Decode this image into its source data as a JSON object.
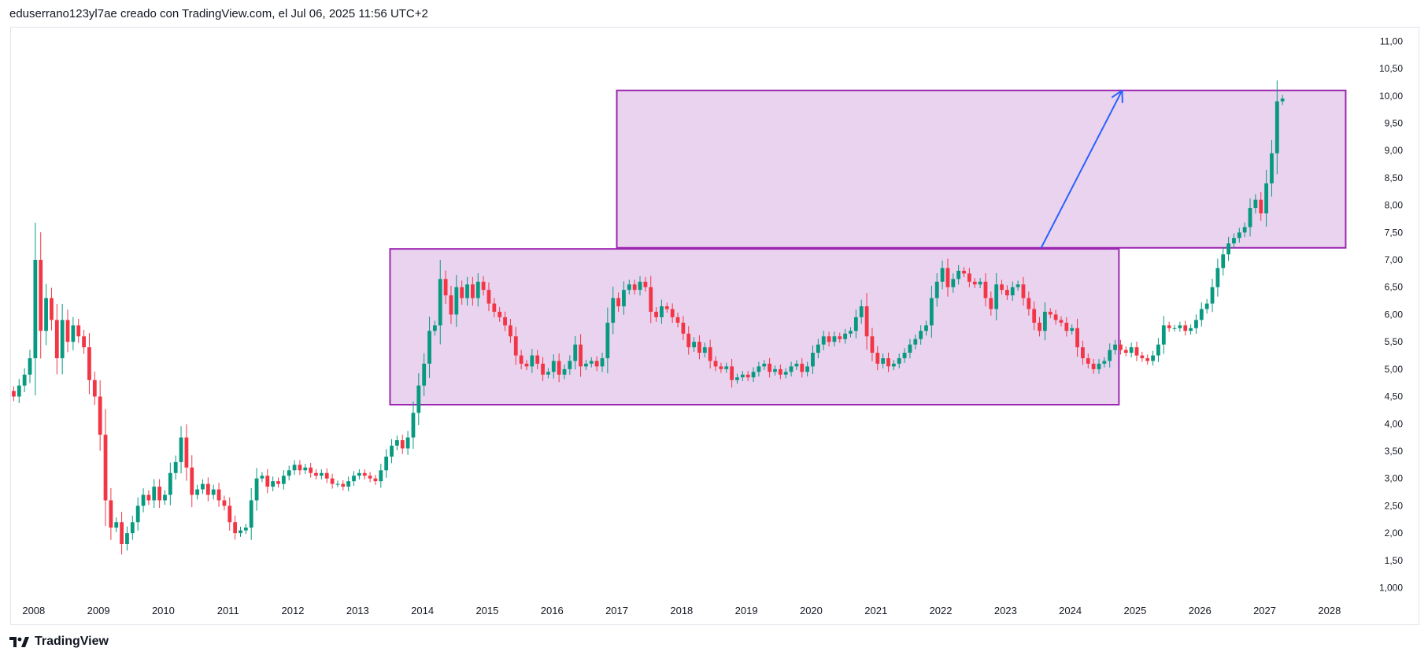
{
  "header": {
    "attribution": "eduserrano123yl7ae creado con TradingView.com, el Jul 06, 2025 11:56 UTC+2"
  },
  "footer": {
    "brand": "TradingView"
  },
  "colors": {
    "up": "#089981",
    "down": "#f23645",
    "box_fill": "#e1c4e9",
    "box_stroke": "#9c27b0",
    "arrow": "#2962ff",
    "axis_text": "#131722"
  },
  "chart_data": {
    "type": "candlestick",
    "timeframe": "monthly",
    "x_ticks": [
      "2008",
      "2009",
      "2010",
      "2011",
      "2012",
      "2013",
      "2014",
      "2015",
      "2016",
      "2017",
      "2018",
      "2019",
      "2020",
      "2021",
      "2022",
      "2023",
      "2024",
      "2025",
      "2026",
      "2027",
      "2028"
    ],
    "y_ticks": [
      "11,00",
      "10,50",
      "10,00",
      "9,50",
      "9,00",
      "8,50",
      "8,00",
      "7,50",
      "7,00",
      "6,50",
      "6,00",
      "5,50",
      "5,00",
      "4,50",
      "4,00",
      "3,50",
      "3,00",
      "2,50",
      "2,00",
      "1,50",
      "1,000"
    ],
    "ylim": [
      0.95,
      11.25
    ],
    "xlim": [
      2007.65,
      2028.5
    ],
    "start": 2007.65,
    "step": 0.0833333,
    "closes": [
      4.5,
      4.7,
      4.9,
      5.2,
      7.0,
      5.7,
      6.3,
      5.9,
      5.2,
      5.9,
      5.5,
      5.8,
      5.6,
      5.4,
      4.8,
      4.5,
      3.8,
      2.6,
      2.1,
      2.2,
      1.8,
      2.0,
      2.2,
      2.5,
      2.7,
      2.6,
      2.85,
      2.6,
      2.7,
      3.1,
      3.3,
      3.75,
      3.2,
      2.7,
      2.8,
      2.9,
      2.7,
      2.8,
      2.6,
      2.5,
      2.2,
      2.0,
      2.05,
      2.1,
      2.6,
      3.0,
      3.05,
      2.85,
      2.95,
      2.9,
      3.05,
      3.15,
      3.25,
      3.15,
      3.2,
      3.1,
      3.05,
      3.1,
      3.0,
      2.9,
      2.9,
      2.85,
      2.95,
      3.05,
      3.1,
      3.05,
      3.0,
      2.95,
      3.15,
      3.4,
      3.6,
      3.7,
      3.55,
      3.75,
      4.2,
      4.7,
      5.1,
      5.7,
      5.8,
      6.65,
      6.35,
      6.0,
      6.5,
      6.3,
      6.55,
      6.3,
      6.6,
      6.45,
      6.2,
      6.05,
      5.95,
      5.8,
      5.6,
      5.25,
      5.1,
      5.05,
      5.25,
      5.1,
      4.9,
      4.95,
      5.15,
      4.9,
      5.0,
      5.15,
      5.45,
      5.05,
      5.1,
      5.15,
      5.05,
      5.2,
      5.85,
      6.3,
      6.15,
      6.45,
      6.55,
      6.45,
      6.6,
      6.5,
      6.05,
      5.95,
      6.15,
      6.1,
      5.95,
      5.85,
      5.65,
      5.4,
      5.5,
      5.3,
      5.4,
      5.15,
      5.05,
      5.0,
      5.05,
      4.8,
      4.85,
      4.9,
      4.85,
      4.95,
      5.05,
      5.1,
      4.95,
      5.0,
      4.9,
      4.95,
      5.05,
      5.1,
      4.95,
      5.05,
      5.3,
      5.45,
      5.6,
      5.5,
      5.6,
      5.55,
      5.65,
      5.7,
      5.95,
      6.15,
      5.6,
      5.3,
      5.1,
      5.2,
      5.05,
      5.1,
      5.2,
      5.3,
      5.45,
      5.55,
      5.7,
      5.8,
      6.3,
      6.6,
      6.85,
      6.5,
      6.65,
      6.8,
      6.75,
      6.6,
      6.55,
      6.6,
      6.3,
      6.1,
      6.55,
      6.45,
      6.35,
      6.5,
      6.55,
      6.3,
      6.1,
      5.85,
      5.7,
      6.05,
      6.0,
      5.9,
      5.85,
      5.7,
      5.75,
      5.4,
      5.2,
      5.1,
      5.0,
      5.1,
      5.15,
      5.35,
      5.45,
      5.35,
      5.3,
      5.4,
      5.25,
      5.2,
      5.15,
      5.25,
      5.45,
      5.8,
      5.75,
      5.75,
      5.8,
      5.7,
      5.75,
      5.9,
      6.1,
      6.2,
      6.5,
      6.85,
      7.1,
      7.3,
      7.4,
      7.5,
      7.6,
      7.95,
      8.1,
      7.85,
      8.4,
      8.95,
      9.9,
      9.95
    ],
    "open_first": 4.6,
    "series": [
      {
        "name": "",
        "kind": "monthly candles"
      }
    ],
    "zones": [
      {
        "from": 2013.5,
        "to": 2024.75,
        "low": 4.35,
        "high": 7.2
      },
      {
        "from": 2017.0,
        "to": 2028.25,
        "low": 7.22,
        "high": 10.1
      }
    ],
    "arrow": {
      "from": [
        2023.55,
        7.22
      ],
      "to": [
        2024.8,
        10.1
      ]
    }
  }
}
